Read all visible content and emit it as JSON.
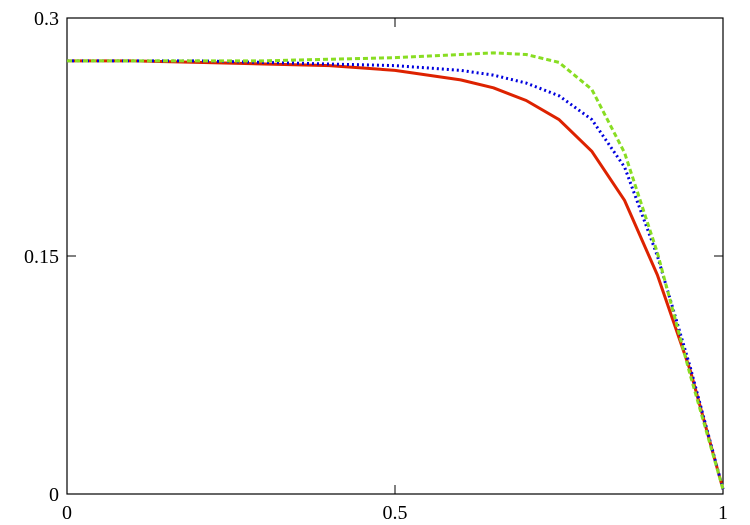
{
  "chart_data": {
    "type": "line",
    "x": [
      0,
      0.1,
      0.2,
      0.3,
      0.4,
      0.5,
      0.6,
      0.65,
      0.7,
      0.75,
      0.8,
      0.85,
      0.9,
      0.95,
      1
    ],
    "series": [
      {
        "color": "#dd2200",
        "dash": "solid",
        "values": [
          0.273,
          0.273,
          0.272,
          0.271,
          0.27,
          0.267,
          0.261,
          0.256,
          0.248,
          0.236,
          0.216,
          0.185,
          0.138,
          0.078,
          0.003
        ]
      },
      {
        "color": "#0000dd",
        "dash": "dotted",
        "values": [
          0.273,
          0.273,
          0.273,
          0.272,
          0.271,
          0.27,
          0.267,
          0.264,
          0.259,
          0.251,
          0.236,
          0.206,
          0.15,
          0.08,
          0.003
        ]
      },
      {
        "color": "#88dd22",
        "dash": "dashed",
        "values": [
          0.273,
          0.273,
          0.273,
          0.273,
          0.274,
          0.275,
          0.277,
          0.278,
          0.277,
          0.272,
          0.255,
          0.215,
          0.152,
          0.075,
          0.003
        ]
      }
    ],
    "xlim": [
      0,
      1
    ],
    "xticks": [
      0,
      0.5,
      1
    ],
    "ylim": [
      0,
      0.3
    ],
    "yticks": [
      0,
      0.15,
      0.3
    ]
  }
}
